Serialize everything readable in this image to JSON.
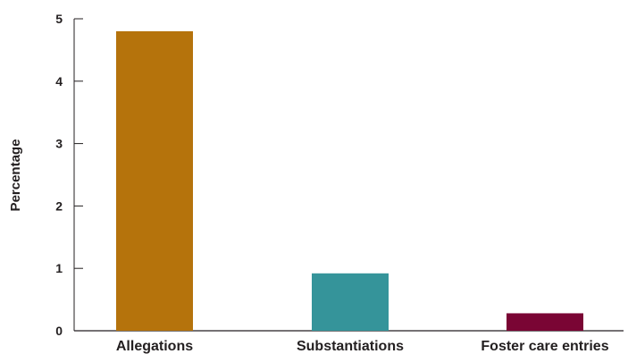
{
  "chart_data": {
    "type": "bar",
    "title": "",
    "xlabel": "",
    "ylabel": "Percentage",
    "categories": [
      "Allegations",
      "Substantiations",
      "Foster care entries"
    ],
    "values": [
      4.8,
      0.92,
      0.28
    ],
    "ylim": [
      0,
      5
    ],
    "yticks": [
      "0",
      "1",
      "2",
      "3",
      "4",
      "5"
    ],
    "grid": false,
    "legend": "none",
    "colors": [
      "#b5730c",
      "#35949a",
      "#7a0534"
    ],
    "axis_color": "#231f20"
  }
}
